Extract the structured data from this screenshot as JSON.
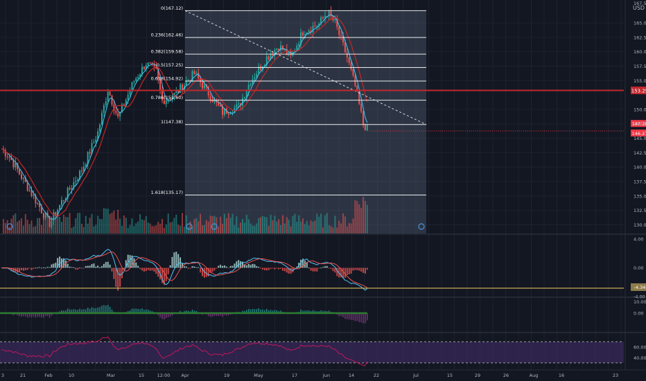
{
  "header": {
    "currency_label": "USD"
  },
  "chart_data": {
    "type": "candlestick",
    "main": {
      "ylim": [
        128.5,
        168.0
      ],
      "y_ticks": [
        {
          "v": 165.0,
          "label": "165.00"
        },
        {
          "v": 162.5,
          "label": "162.50"
        },
        {
          "v": 160.0,
          "label": "160.00"
        },
        {
          "v": 157.5,
          "label": "157.50"
        },
        {
          "v": 155.0,
          "label": "155.00"
        },
        {
          "v": 150.0,
          "label": "150.00"
        },
        {
          "v": 147.5,
          "label": "147.50"
        },
        {
          "v": 145.0,
          "label": "145.00"
        },
        {
          "v": 142.5,
          "label": "142.50"
        },
        {
          "v": 140.0,
          "label": "140.00"
        },
        {
          "v": 137.5,
          "label": "137.50"
        },
        {
          "v": 135.0,
          "label": "135.00"
        },
        {
          "v": 132.5,
          "label": "132.50"
        },
        {
          "v": 130.0,
          "label": "130.00"
        }
      ],
      "top_tick_label": "167.50",
      "price_lines": [
        {
          "v": 153.29,
          "label": "153.29",
          "color": "#c2272d"
        }
      ],
      "last_price_labels": [
        {
          "v": 147.2,
          "label": "147.20",
          "color": "#f23645"
        },
        {
          "v": 146.27,
          "label": "146.27",
          "color": "#f23645"
        }
      ],
      "fibonacci": {
        "levels": [
          {
            "label": "0(167.12)",
            "v": 167.12
          },
          {
            "label": "0.236(162.46)",
            "v": 162.46
          },
          {
            "label": "0.382(159.58)",
            "v": 159.58
          },
          {
            "label": "0.5(157.25)",
            "v": 157.25
          },
          {
            "label": "0.618(154.92)",
            "v": 154.92
          },
          {
            "label": "0.786(151.60)",
            "v": 151.6
          },
          {
            "label": "1(147.38)",
            "v": 147.38
          },
          {
            "label": "1.618(135.17)",
            "v": 135.17
          }
        ],
        "color": "#ffffff"
      },
      "trendline": {
        "from": [
          "Apr 1",
          167.12
        ],
        "to": [
          "Jul 8",
          147.38
        ]
      }
    },
    "macd": {
      "ylim": [
        -4.0,
        4.5
      ],
      "y_ticks": [
        {
          "v": 4.0,
          "label": "4.00"
        },
        {
          "v": 0.0,
          "label": "0.00"
        }
      ],
      "extra_label": "-4.00"
    },
    "osc": {
      "ylim": [
        -16.0,
        13.5
      ],
      "y_ticks": [
        {
          "v": 10.0,
          "label": "10.00"
        },
        {
          "v": 0.0,
          "label": "0.00"
        }
      ],
      "boxed_label": "-4.34"
    },
    "rsi": {
      "ylim": [
        22,
        85
      ],
      "y_ticks": [
        {
          "v": 60,
          "label": "60.00"
        },
        {
          "v": 40,
          "label": "40.00"
        }
      ],
      "upper_band": 70,
      "lower_band": 30
    },
    "x_axis": {
      "ticks": [
        "3",
        "21",
        "Feb",
        "10",
        "Mar",
        "15",
        "12:00",
        "Apr",
        "19",
        "May",
        "17",
        "Jun",
        "14",
        "22",
        "Jul",
        "15",
        "29",
        "26",
        "Aug",
        "16",
        "23"
      ]
    },
    "colors": {
      "up": "#26a69a",
      "down": "#ef5350",
      "ma_fast": "#4fc3f7",
      "ma_slow": "#c62828",
      "background": "#131722",
      "grid": "#1e2230",
      "volume_up": "#26a69a",
      "volume_down": "#ef5350",
      "rsi_line": "#c2185b",
      "rsi_band": "#2a1f3d",
      "pivot_line": "#f0d060"
    }
  }
}
